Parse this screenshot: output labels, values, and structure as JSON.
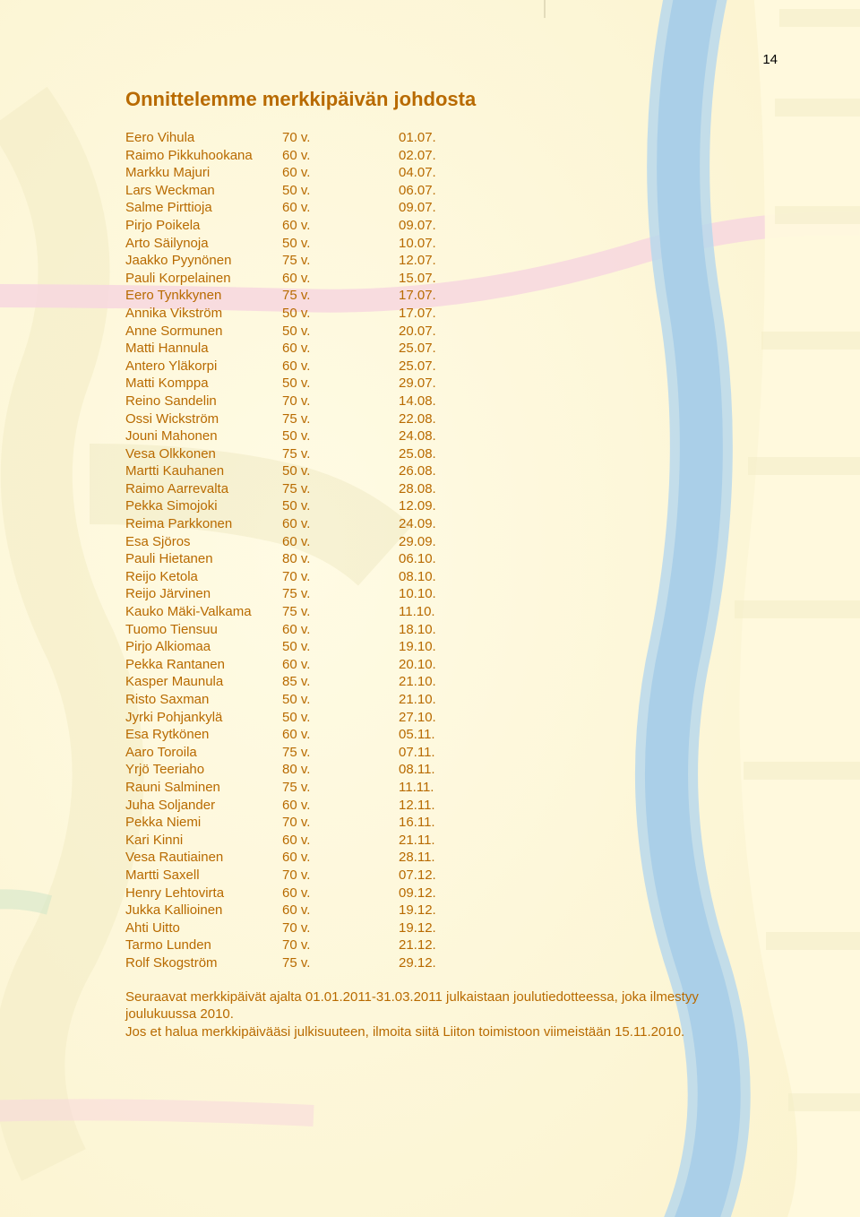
{
  "page_number": "14",
  "colors": {
    "bg_base": "#fdf6d8",
    "bg_light": "#fffade",
    "heading": "#b86a00",
    "text": "#b86a00",
    "page_num": "#000000",
    "river": "#a7cde8",
    "road": "#f7d7df",
    "field1": "#f4efc8",
    "field2": "#e9e3b8"
  },
  "heading": "Onnittelemme merkkipäivän johdosta",
  "people": [
    {
      "name": "Eero Vihula",
      "age": "70 v.",
      "date": "01.07."
    },
    {
      "name": "Raimo Pikkuhookana",
      "age": "60 v.",
      "date": "02.07."
    },
    {
      "name": "Markku Majuri",
      "age": "60 v.",
      "date": "04.07."
    },
    {
      "name": "Lars Weckman",
      "age": "50 v.",
      "date": "06.07."
    },
    {
      "name": "Salme Pirttioja",
      "age": "60 v.",
      "date": "09.07."
    },
    {
      "name": "Pirjo Poikela",
      "age": "60 v.",
      "date": "09.07."
    },
    {
      "name": "Arto Säilynoja",
      "age": "50 v.",
      "date": "10.07."
    },
    {
      "name": "Jaakko Pyynönen",
      "age": "75 v.",
      "date": "12.07."
    },
    {
      "name": "Pauli Korpelainen",
      "age": "60 v.",
      "date": "15.07."
    },
    {
      "name": "Eero Tynkkynen",
      "age": "75 v.",
      "date": "17.07."
    },
    {
      "name": "Annika Vikström",
      "age": "50 v.",
      "date": "17.07."
    },
    {
      "name": "Anne Sormunen",
      "age": "50 v.",
      "date": "20.07."
    },
    {
      "name": "Matti Hannula",
      "age": "60 v.",
      "date": "25.07."
    },
    {
      "name": "Antero Yläkorpi",
      "age": "60 v.",
      "date": "25.07."
    },
    {
      "name": "Matti Komppa",
      "age": "50 v.",
      "date": "29.07."
    },
    {
      "name": "Reino Sandelin",
      "age": "70 v.",
      "date": "14.08."
    },
    {
      "name": "Ossi Wickström",
      "age": "75 v.",
      "date": "22.08."
    },
    {
      "name": "Jouni Mahonen",
      "age": "50 v.",
      "date": "24.08."
    },
    {
      "name": "Vesa Olkkonen",
      "age": "75 v.",
      "date": "25.08."
    },
    {
      "name": "Martti Kauhanen",
      "age": "50 v.",
      "date": "26.08."
    },
    {
      "name": "Raimo Aarrevalta",
      "age": "75 v.",
      "date": "28.08."
    },
    {
      "name": "Pekka Simojoki",
      "age": "50 v.",
      "date": "12.09."
    },
    {
      "name": "Reima Parkkonen",
      "age": "60 v.",
      "date": "24.09."
    },
    {
      "name": "Esa Sjöros",
      "age": "60 v.",
      "date": "29.09."
    },
    {
      "name": "Pauli Hietanen",
      "age": "80 v.",
      "date": "06.10."
    },
    {
      "name": "Reijo Ketola",
      "age": "70 v.",
      "date": "08.10."
    },
    {
      "name": "Reijo Järvinen",
      "age": "75 v.",
      "date": "10.10."
    },
    {
      "name": "Kauko Mäki-Valkama",
      "age": "75 v.",
      "date": "11.10."
    },
    {
      "name": "Tuomo Tiensuu",
      "age": "60 v.",
      "date": "18.10."
    },
    {
      "name": "Pirjo Alkiomaa",
      "age": "50 v.",
      "date": "19.10."
    },
    {
      "name": "Pekka Rantanen",
      "age": "60 v.",
      "date": "20.10."
    },
    {
      "name": "Kasper Maunula",
      "age": "85 v.",
      "date": "21.10."
    },
    {
      "name": "Risto Saxman",
      "age": "50 v.",
      "date": "21.10."
    },
    {
      "name": "Jyrki Pohjankylä",
      "age": "50 v.",
      "date": "27.10."
    },
    {
      "name": "Esa Rytkönen",
      "age": "60 v.",
      "date": "05.11."
    },
    {
      "name": "Aaro Toroila",
      "age": "75 v.",
      "date": "07.11."
    },
    {
      "name": "Yrjö Teeriaho",
      "age": "80 v.",
      "date": "08.11."
    },
    {
      "name": "Rauni Salminen",
      "age": "75 v.",
      "date": "11.11."
    },
    {
      "name": "Juha Soljander",
      "age": "60 v.",
      "date": "12.11."
    },
    {
      "name": "Pekka Niemi",
      "age": "70 v.",
      "date": "16.11."
    },
    {
      "name": "Kari Kinni",
      "age": "60 v.",
      "date": "21.11."
    },
    {
      "name": "Vesa Rautiainen",
      "age": "60 v.",
      "date": "28.11."
    },
    {
      "name": "Martti Saxell",
      "age": "70 v.",
      "date": "07.12."
    },
    {
      "name": "Henry Lehtovirta",
      "age": "60 v.",
      "date": "09.12."
    },
    {
      "name": "Jukka Kallioinen",
      "age": "60 v.",
      "date": "19.12."
    },
    {
      "name": "Ahti Uitto",
      "age": "70 v.",
      "date": "19.12."
    },
    {
      "name": "Tarmo Lunden",
      "age": "70 v.",
      "date": "21.12."
    },
    {
      "name": "Rolf Skogström",
      "age": "75 v.",
      "date": "29.12."
    }
  ],
  "note_line1": "Seuraavat merkkipäivät ajalta 01.01.2011-31.03.2011 julkaistaan joulutiedotteessa, joka ilmestyy joulukuussa 2010.",
  "note_line2": "Jos et halua merkkipäivääsi julkisuuteen, ilmoita siitä Liiton toimistoon viimeistään 15.11.2010."
}
